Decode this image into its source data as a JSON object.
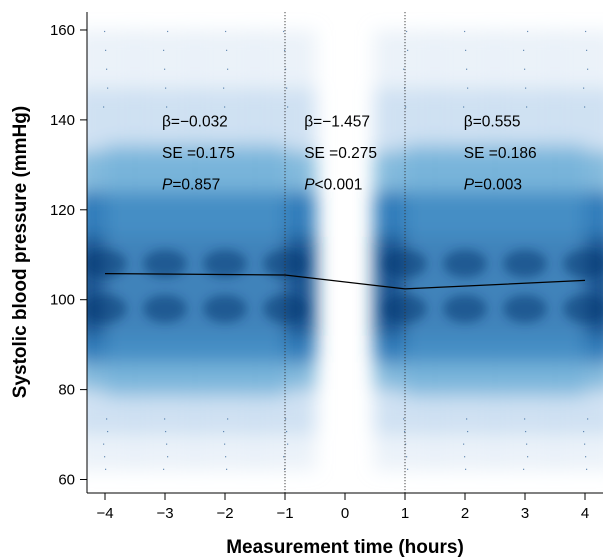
{
  "chart_data": {
    "type": "heatmap",
    "xlabel": "Measurement time (hours)",
    "ylabel": "Systolic blood pressure (mmHg)",
    "xlim": [
      -4.3,
      4.3
    ],
    "ylim": [
      57,
      164
    ],
    "x_ticks": [
      -4,
      -3,
      -2,
      -1,
      0,
      1,
      2,
      3,
      4
    ],
    "x_tick_labels": [
      "−4",
      "−3",
      "−2",
      "−1",
      "0",
      "1",
      "2",
      "3",
      "4"
    ],
    "y_ticks": [
      60,
      80,
      100,
      120,
      140,
      160
    ],
    "y_tick_labels": [
      "60",
      "80",
      "100",
      "120",
      "140",
      "160"
    ],
    "grid": false,
    "color_scale": [
      "#ffffff",
      "#c6dbef",
      "#6baed6",
      "#2171b5",
      "#08306b"
    ],
    "vertical_lines": [
      -1,
      1
    ],
    "density_centers_x": [
      -4,
      -3,
      -2,
      -1,
      1,
      2,
      3,
      4
    ],
    "density_center_y": 105,
    "regression_line": {
      "x": [
        -4,
        -1,
        1,
        4
      ],
      "y": [
        105.8,
        105.5,
        102.4,
        104.3
      ]
    },
    "annotations": [
      {
        "x": -3.05,
        "lines": [
          {
            "parts": [
              {
                "t": "β=−0.032",
                "i": false
              }
            ]
          },
          {
            "parts": [
              {
                "t": "SE =0.175",
                "i": false
              }
            ]
          },
          {
            "parts": [
              {
                "t": "P",
                "i": true
              },
              {
                "t": "=0.857",
                "i": false
              }
            ]
          }
        ]
      },
      {
        "x": -0.68,
        "lines": [
          {
            "parts": [
              {
                "t": "β=−1.457",
                "i": false
              }
            ]
          },
          {
            "parts": [
              {
                "t": "SE =0.275",
                "i": false
              }
            ]
          },
          {
            "parts": [
              {
                "t": "P",
                "i": true
              },
              {
                "t": "<0.001",
                "i": false
              }
            ]
          }
        ]
      },
      {
        "x": 1.98,
        "lines": [
          {
            "parts": [
              {
                "t": "β=0.555",
                "i": false
              }
            ]
          },
          {
            "parts": [
              {
                "t": "SE =0.186",
                "i": false
              }
            ]
          },
          {
            "parts": [
              {
                "t": "P",
                "i": true
              },
              {
                "t": "=0.003",
                "i": false
              }
            ]
          }
        ]
      }
    ]
  }
}
